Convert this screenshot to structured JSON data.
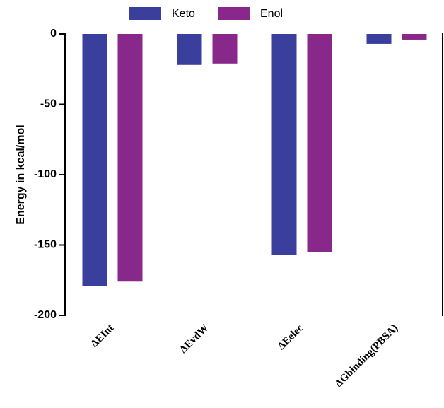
{
  "chart_data": {
    "type": "bar",
    "y_label": "Energy in kcal/mol",
    "categories": [
      "ΔEInt",
      "ΔEvdW",
      "ΔEelec",
      "ΔGbinding(PBSA)"
    ],
    "series": [
      {
        "name": "Keto",
        "color": "#3a3f9e",
        "values": [
          -179,
          -22,
          -157,
          -7
        ]
      },
      {
        "name": "Enol",
        "color": "#87288a",
        "values": [
          -176,
          -21,
          -155,
          -4
        ]
      }
    ],
    "ylim": [
      -200,
      0
    ],
    "yticks": [
      -200,
      -150,
      -100,
      -50,
      0
    ]
  }
}
